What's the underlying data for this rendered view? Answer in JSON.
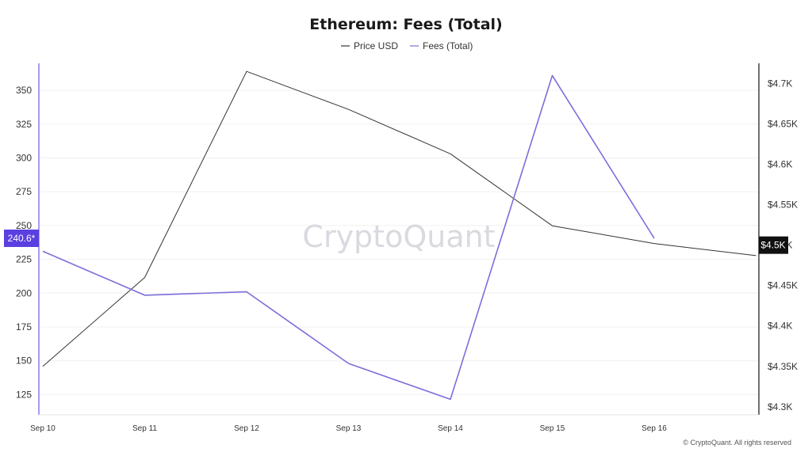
{
  "chart_data": {
    "type": "line",
    "title": "Ethereum: Fees (Total)",
    "categories": [
      "Sep 10",
      "Sep 11",
      "Sep 12",
      "Sep 13",
      "Sep 14",
      "Sep 15",
      "Sep 16"
    ],
    "series": [
      {
        "name": "Price USD",
        "axis": "right",
        "color": "#333333",
        "x": [
          0,
          1,
          2,
          3,
          4,
          5,
          6,
          7
        ],
        "values": [
          4350,
          4460,
          4715,
          4668,
          4613,
          4524,
          4502,
          4487
        ]
      },
      {
        "name": "Fees (Total)",
        "axis": "left",
        "color": "#7b6fdb",
        "x": [
          0,
          1,
          2,
          3,
          4,
          5,
          6
        ],
        "values": [
          231,
          198.5,
          201,
          148,
          121.5,
          361,
          240.6
        ]
      }
    ],
    "y_left": {
      "ticks": [
        125,
        150,
        175,
        200,
        225,
        250,
        275,
        300,
        325,
        350
      ],
      "range": [
        110,
        370
      ]
    },
    "y_right": {
      "ticks": [
        4300,
        4350,
        4400,
        4450,
        4500,
        4550,
        4600,
        4650,
        4700
      ],
      "tick_labels": [
        "$4.3K",
        "$4.35K",
        "$4.4K",
        "$4.45K",
        "$4.5K",
        "$4.55K",
        "$4.6K",
        "$4.65K",
        "$4.7K"
      ],
      "range": [
        4290,
        4725
      ]
    },
    "left_tag": {
      "label": "240.6*",
      "value": 240.6,
      "color": "#5b3fe0"
    },
    "right_tag": {
      "label": "$4.5K",
      "value": 4500,
      "color": "#111111"
    },
    "grid": true,
    "legend_position": "top-center",
    "watermark": "CryptoQuant",
    "copyright": "© CryptoQuant. All rights reserved"
  }
}
